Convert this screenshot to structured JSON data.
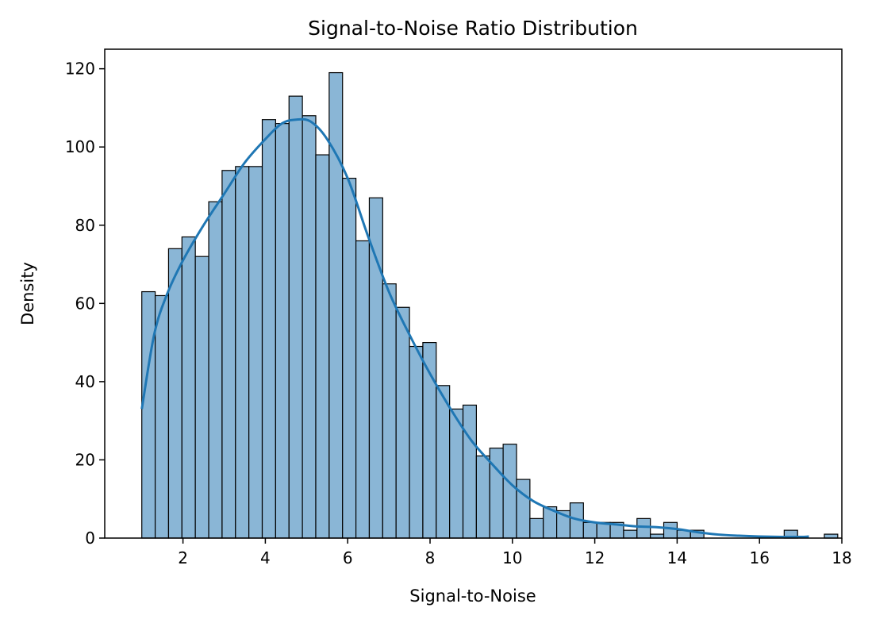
{
  "chart_data": {
    "type": "bar",
    "title": "Signal-to-Noise Ratio Distribution",
    "xlabel": "Signal-to-Noise",
    "ylabel": "Density",
    "xlim": [
      0.1,
      18
    ],
    "ylim": [
      0,
      125
    ],
    "xticks": [
      "2",
      "4",
      "6",
      "8",
      "10",
      "12",
      "14",
      "16",
      "18"
    ],
    "yticks": [
      "0",
      "20",
      "40",
      "60",
      "80",
      "100",
      "120"
    ],
    "grid": false,
    "bin_start": 1.0,
    "bin_width": 0.325,
    "counts": [
      63,
      62,
      74,
      77,
      72,
      86,
      94,
      95,
      95,
      107,
      106,
      113,
      108,
      98,
      119,
      92,
      76,
      87,
      65,
      59,
      49,
      50,
      39,
      33,
      34,
      21,
      23,
      24,
      15,
      5,
      8,
      7,
      9,
      4,
      4,
      4,
      2,
      5,
      1,
      4,
      2,
      2,
      0,
      0,
      0,
      0,
      0,
      0,
      2,
      0,
      0,
      1
    ],
    "bar_color": "#8ab6d6",
    "edge_color": "#000000",
    "kde": {
      "name": "KDE",
      "color": "#1f77b4",
      "x": [
        1.0,
        1.3,
        1.6,
        2.0,
        2.5,
        3.0,
        3.5,
        4.0,
        4.4,
        4.75,
        5.1,
        5.5,
        6.0,
        6.5,
        7.0,
        7.5,
        8.0,
        8.5,
        9.0,
        9.5,
        10.0,
        10.5,
        11.0,
        11.5,
        12.0,
        12.5,
        13.0,
        13.5,
        14.0,
        14.5,
        15.0,
        15.5,
        16.0,
        16.5,
        17.0,
        17.2
      ],
      "y": [
        33,
        52,
        62,
        71,
        80,
        88,
        96,
        102,
        106,
        107,
        106.5,
        102,
        92,
        77,
        63,
        52,
        42,
        33,
        25,
        19,
        13.5,
        9.5,
        7,
        5,
        4,
        3.5,
        3,
        2.8,
        2.3,
        1.5,
        0.9,
        0.6,
        0.4,
        0.3,
        0.3,
        0.4
      ]
    }
  }
}
